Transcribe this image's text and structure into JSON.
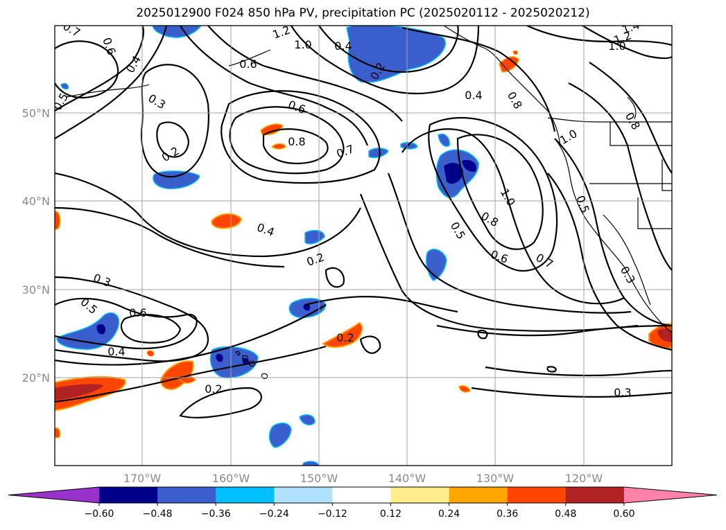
{
  "title": "2025012900 F024 850 hPa PV, precipitation PC (2025020112 - 2025020212)",
  "map": {
    "lat_ticks": [
      "20°N",
      "30°N",
      "40°N",
      "50°N"
    ],
    "lon_ticks": [
      "170°W",
      "160°W",
      "150°W",
      "140°W",
      "130°W",
      "120°W"
    ],
    "contour_labels": [
      "0.7",
      "0.6",
      "0.4",
      "0.3",
      "0.5",
      "1.2",
      "1.0",
      "0.6",
      "0.2",
      "0.4",
      "1.4",
      "1.2",
      "1.0",
      "0.6",
      "0.8",
      "0.7",
      "0.2",
      "0.4",
      "1.0",
      "0.8",
      "0.4",
      "0.2",
      "0.5",
      "0.6",
      "0.7",
      "0.5",
      "0.3",
      "0.3",
      "0.6",
      "0.4",
      "0.2",
      "0.5",
      "0.2",
      "0.3",
      "0.8",
      "1.0",
      "0.8"
    ]
  },
  "colorbar": {
    "ticks": [
      "−0.60",
      "−0.48",
      "−0.36",
      "−0.24",
      "−0.12",
      "0.12",
      "0.24",
      "0.36",
      "0.48",
      "0.60"
    ],
    "colors": [
      "#9932cc",
      "#00008b",
      "#3a5fcd",
      "#00bfff",
      "#b0e2ff",
      "#ffffff",
      "#ffec8b",
      "#ffa500",
      "#ff4500",
      "#b22222",
      "#ff82ab"
    ]
  }
}
